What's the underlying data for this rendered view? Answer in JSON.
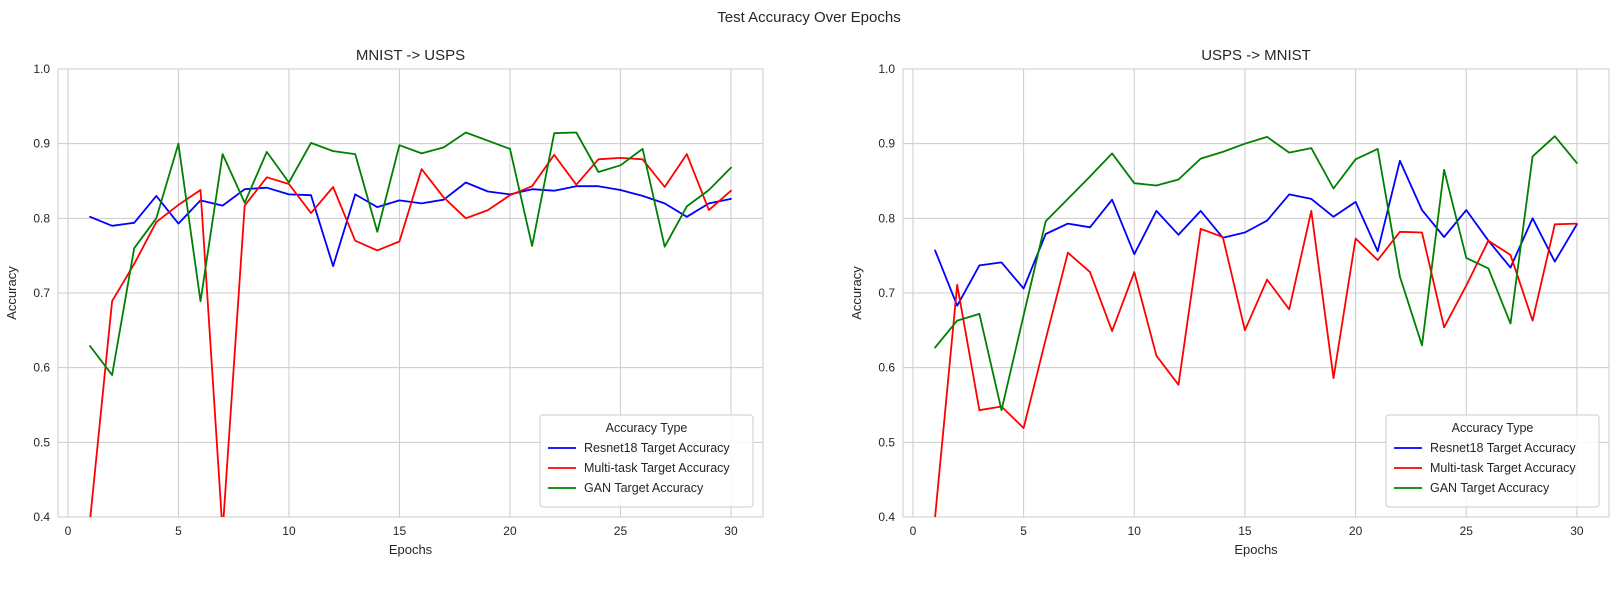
{
  "figure": {
    "suptitle": "Test Accuracy Over Epochs"
  },
  "colors": {
    "resnet": "#0000ff",
    "multitask": "#ff0000",
    "gan": "#008000",
    "grid": "#cccccc",
    "spine": "#cccccc"
  },
  "chart_data": [
    {
      "type": "line",
      "title": "MNIST -> USPS",
      "xlabel": "Epochs",
      "ylabel": "Accuracy",
      "xlim": [
        -0.45,
        31.45
      ],
      "ylim": [
        0.4,
        1.0
      ],
      "xticks": [
        0,
        5,
        10,
        15,
        20,
        25,
        30
      ],
      "yticks": [
        0.4,
        0.5,
        0.6,
        0.7,
        0.8,
        0.9,
        1.0
      ],
      "grid": true,
      "legend": {
        "title": "Accuracy Type",
        "placement": "lower-right"
      },
      "x": [
        1,
        2,
        3,
        4,
        5,
        6,
        7,
        8,
        9,
        10,
        11,
        12,
        13,
        14,
        15,
        16,
        17,
        18,
        19,
        20,
        21,
        22,
        23,
        24,
        25,
        26,
        27,
        28,
        29,
        30
      ],
      "series": [
        {
          "name": "Resnet18 Target Accuracy",
          "color": "#0000ff",
          "values": [
            0.802,
            0.79,
            0.794,
            0.83,
            0.793,
            0.824,
            0.817,
            0.839,
            0.841,
            0.832,
            0.831,
            0.736,
            0.832,
            0.815,
            0.824,
            0.82,
            0.825,
            0.848,
            0.836,
            0.832,
            0.839,
            0.837,
            0.843,
            0.843,
            0.838,
            0.83,
            0.82,
            0.802,
            0.82,
            0.826
          ]
        },
        {
          "name": "Multi-task Target Accuracy",
          "color": "#ff0000",
          "values": [
            0.395,
            0.689,
            0.739,
            0.795,
            0.818,
            0.838,
            0.38,
            0.817,
            0.855,
            0.846,
            0.807,
            0.842,
            0.77,
            0.757,
            0.769,
            0.866,
            0.828,
            0.8,
            0.811,
            0.831,
            0.843,
            0.885,
            0.845,
            0.879,
            0.881,
            0.879,
            0.842,
            0.886,
            0.811,
            0.837
          ]
        },
        {
          "name": "GAN Target Accuracy",
          "color": "#008000",
          "values": [
            0.629,
            0.59,
            0.76,
            0.8,
            0.9,
            0.689,
            0.886,
            0.821,
            0.889,
            0.848,
            0.901,
            0.89,
            0.886,
            0.782,
            0.898,
            0.887,
            0.895,
            0.915,
            0.904,
            0.893,
            0.763,
            0.914,
            0.915,
            0.862,
            0.871,
            0.893,
            0.762,
            0.816,
            0.838,
            0.868
          ]
        }
      ]
    },
    {
      "type": "line",
      "title": "USPS -> MNIST",
      "xlabel": "Epochs",
      "ylabel": "Accuracy",
      "xlim": [
        -0.45,
        31.45
      ],
      "ylim": [
        0.4,
        1.0
      ],
      "xticks": [
        0,
        5,
        10,
        15,
        20,
        25,
        30
      ],
      "yticks": [
        0.4,
        0.5,
        0.6,
        0.7,
        0.8,
        0.9,
        1.0
      ],
      "grid": true,
      "legend": {
        "title": "Accuracy Type",
        "placement": "lower-right"
      },
      "x": [
        1,
        2,
        3,
        4,
        5,
        6,
        7,
        8,
        9,
        10,
        11,
        12,
        13,
        14,
        15,
        16,
        17,
        18,
        19,
        20,
        21,
        22,
        23,
        24,
        25,
        26,
        27,
        28,
        29,
        30
      ],
      "series": [
        {
          "name": "Resnet18 Target Accuracy",
          "color": "#0000ff",
          "values": [
            0.757,
            0.683,
            0.737,
            0.741,
            0.706,
            0.779,
            0.793,
            0.788,
            0.825,
            0.752,
            0.81,
            0.778,
            0.81,
            0.774,
            0.781,
            0.797,
            0.832,
            0.826,
            0.802,
            0.822,
            0.756,
            0.877,
            0.811,
            0.775,
            0.811,
            0.77,
            0.734,
            0.8,
            0.742,
            0.792
          ]
        },
        {
          "name": "Multi-task Target Accuracy",
          "color": "#ff0000",
          "values": [
            0.4,
            0.711,
            0.543,
            0.548,
            0.519,
            0.638,
            0.754,
            0.728,
            0.649,
            0.728,
            0.616,
            0.577,
            0.786,
            0.775,
            0.65,
            0.718,
            0.678,
            0.81,
            0.586,
            0.773,
            0.744,
            0.782,
            0.781,
            0.654,
            0.71,
            0.77,
            0.751,
            0.663,
            0.792,
            0.793
          ]
        },
        {
          "name": "GAN Target Accuracy",
          "color": "#008000",
          "values": [
            0.627,
            0.663,
            0.672,
            0.543,
            0.67,
            0.796,
            0.826,
            0.856,
            0.887,
            0.847,
            0.844,
            0.852,
            0.88,
            0.889,
            0.9,
            0.909,
            0.888,
            0.894,
            0.84,
            0.879,
            0.893,
            0.722,
            0.63,
            0.865,
            0.747,
            0.733,
            0.659,
            0.883,
            0.91,
            0.874
          ]
        }
      ]
    }
  ]
}
